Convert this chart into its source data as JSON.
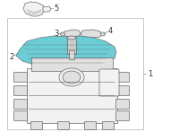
{
  "bg_color": "#ffffff",
  "border_color": "#c8c8c8",
  "label_1": "1",
  "label_2": "2",
  "label_3": "3",
  "label_4": "4",
  "label_5": "5",
  "highlight_color": "#5bc8d2",
  "part_outline_color": "#666666",
  "fill_light": "#f2f2f2",
  "fill_mid": "#e0e0e0",
  "line_color": "#888888",
  "font_size_labels": 6.0
}
